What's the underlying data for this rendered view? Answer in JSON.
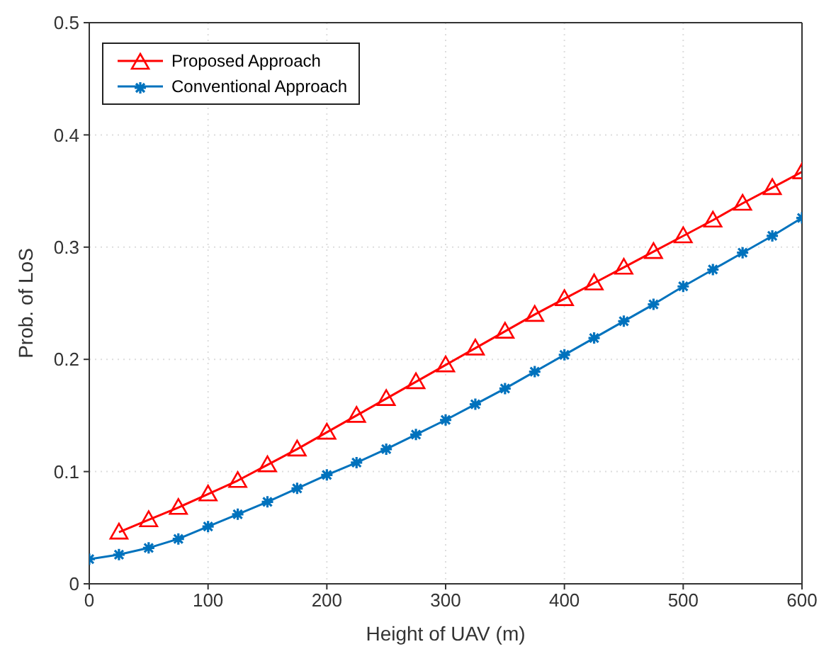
{
  "chart_data": {
    "type": "line",
    "xlabel": "Height of UAV (m)",
    "ylabel": "Prob. of LoS",
    "xlim": [
      0,
      600
    ],
    "xticks": [
      0,
      100,
      200,
      300,
      400,
      500,
      600
    ],
    "ylim": [
      0,
      0.5
    ],
    "yticks": [
      0,
      0.1,
      0.2,
      0.3,
      0.4,
      0.5
    ],
    "grid": true,
    "legend": "top left",
    "line_style": "solid",
    "series": [
      {
        "name": "Proposed Approach",
        "color": "#ff0000",
        "marker": "triangle",
        "x": [
          25,
          50,
          75,
          100,
          125,
          150,
          175,
          200,
          225,
          250,
          275,
          300,
          325,
          350,
          375,
          400,
          425,
          450,
          475,
          500,
          525,
          550,
          575,
          600
        ],
        "values": [
          0.046,
          0.057,
          0.068,
          0.08,
          0.092,
          0.106,
          0.12,
          0.135,
          0.15,
          0.165,
          0.18,
          0.195,
          0.21,
          0.225,
          0.24,
          0.254,
          0.268,
          0.282,
          0.296,
          0.31,
          0.324,
          0.339,
          0.353,
          0.367
        ]
      },
      {
        "name": "Conventional Approach",
        "color": "#0072bd",
        "marker": "cross",
        "x": [
          0,
          25,
          50,
          75,
          100,
          125,
          150,
          175,
          200,
          225,
          250,
          275,
          300,
          325,
          350,
          375,
          400,
          425,
          450,
          475,
          500,
          525,
          550,
          575,
          600
        ],
        "values": [
          0.022,
          0.026,
          0.032,
          0.04,
          0.051,
          0.062,
          0.073,
          0.085,
          0.097,
          0.108,
          0.12,
          0.133,
          0.146,
          0.16,
          0.174,
          0.189,
          0.204,
          0.219,
          0.234,
          0.249,
          0.265,
          0.28,
          0.295,
          0.31,
          0.326
        ]
      }
    ]
  }
}
